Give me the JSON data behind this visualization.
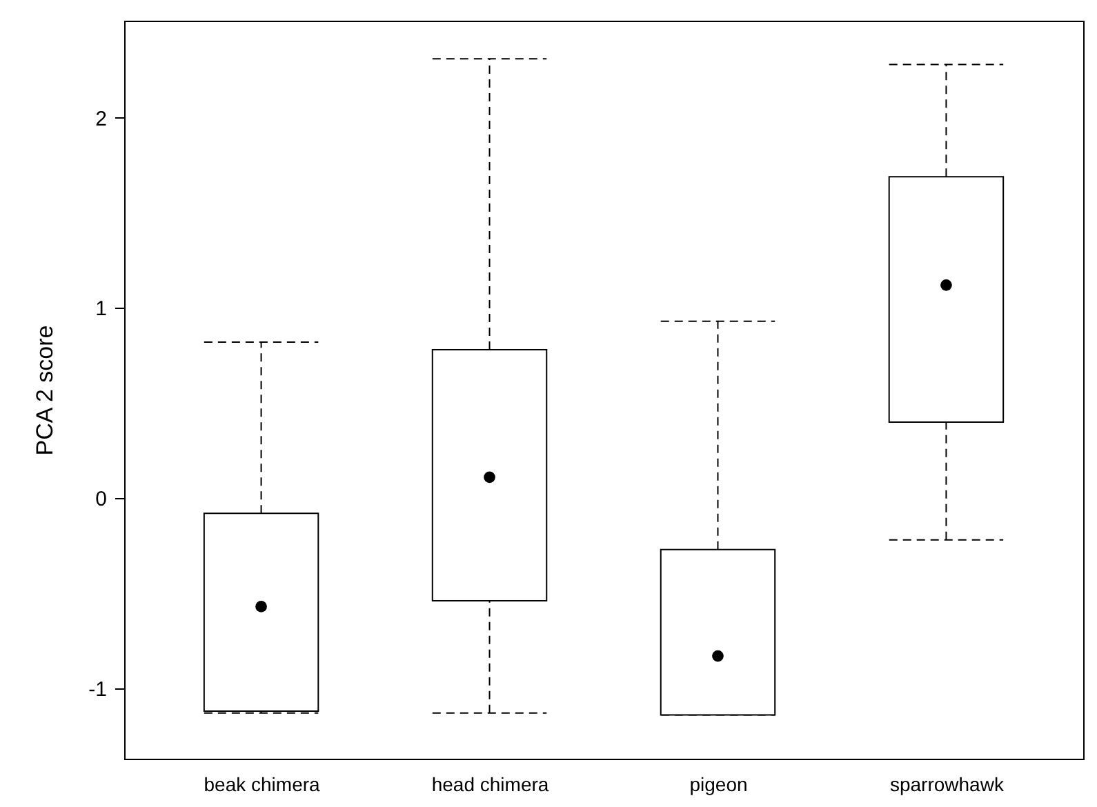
{
  "chart_data": {
    "type": "box",
    "ylabel": "PCA 2 score",
    "categories": [
      "beak chimera",
      "head chimera",
      "pigeon",
      "sparrowhawk"
    ],
    "boxes": [
      {
        "low": -1.13,
        "q1": -1.12,
        "median": -0.57,
        "q3": -0.08,
        "high": 0.82
      },
      {
        "low": -1.13,
        "q1": -0.54,
        "median": 0.11,
        "q3": 0.78,
        "high": 2.31
      },
      {
        "low": -1.14,
        "q1": -1.14,
        "median": -0.83,
        "q3": -0.27,
        "high": 0.93
      },
      {
        "low": -0.22,
        "q1": 0.4,
        "median": 1.12,
        "q3": 1.69,
        "high": 2.28
      }
    ],
    "ylim": [
      -1.37,
      2.51
    ],
    "yticks": [
      -1,
      0,
      1,
      2
    ],
    "line_style": "dashed"
  }
}
